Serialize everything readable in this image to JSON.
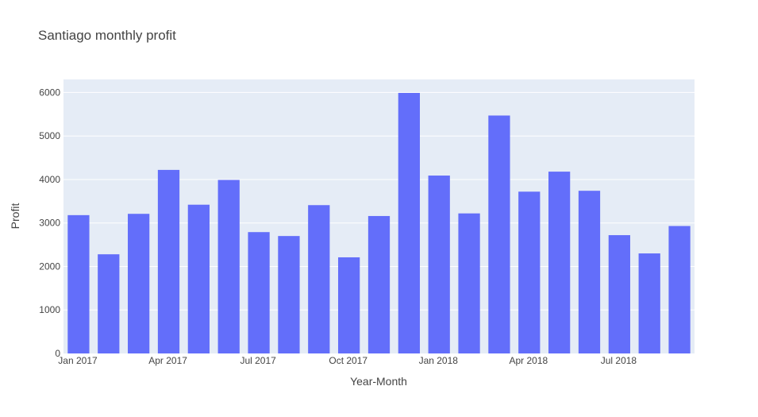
{
  "chart_data": {
    "type": "bar",
    "title": "Santiago monthly profit",
    "xlabel": "Year-Month",
    "ylabel": "Profit",
    "ylim": [
      0,
      6300
    ],
    "yticks": [
      0,
      1000,
      2000,
      3000,
      4000,
      5000,
      6000
    ],
    "xticks": [
      {
        "label": "Jan 2017",
        "index": 0
      },
      {
        "label": "Apr 2017",
        "index": 3
      },
      {
        "label": "Jul 2017",
        "index": 6
      },
      {
        "label": "Oct 2017",
        "index": 9
      },
      {
        "label": "Jan 2018",
        "index": 12
      },
      {
        "label": "Apr 2018",
        "index": 15
      },
      {
        "label": "Jul 2018",
        "index": 18
      }
    ],
    "categories": [
      "2017-01",
      "2017-02",
      "2017-03",
      "2017-04",
      "2017-05",
      "2017-06",
      "2017-07",
      "2017-08",
      "2017-09",
      "2017-10",
      "2017-11",
      "2017-12",
      "2018-01",
      "2018-02",
      "2018-03",
      "2018-04",
      "2018-05",
      "2018-06",
      "2018-07",
      "2018-08",
      "2018-09"
    ],
    "values": [
      3180,
      2280,
      3210,
      4220,
      3420,
      3990,
      2790,
      2700,
      3410,
      2210,
      3160,
      5990,
      4090,
      3220,
      5470,
      3720,
      4180,
      3740,
      2720,
      2300,
      2930
    ],
    "bar_color": "#636efa",
    "plot_bg": "#e5ecf6",
    "grid": true,
    "legend": "none"
  }
}
